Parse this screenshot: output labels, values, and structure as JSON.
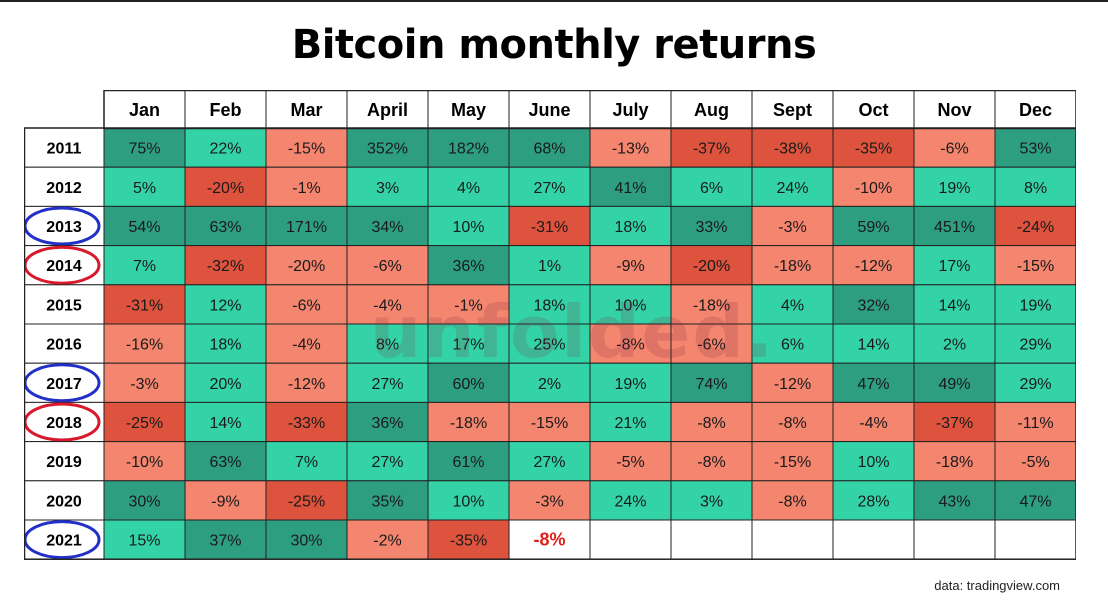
{
  "title": "Bitcoin monthly returns",
  "watermark": "unfolded.",
  "source": "data: tradingview.com",
  "colors": {
    "strong_green": "#2e9e80",
    "light_green": "#34d3a7",
    "light_red": "#f4856f",
    "strong_red": "#dd533d",
    "highlight_text": "#e0201e",
    "blue_circle": "#2330c8",
    "red_circle": "#d8182b"
  },
  "chart_data": {
    "type": "table",
    "title": "Bitcoin monthly returns",
    "columns": [
      "Jan",
      "Feb",
      "Mar",
      "April",
      "May",
      "June",
      "July",
      "Aug",
      "Sept",
      "Oct",
      "Nov",
      "Dec"
    ],
    "rows": [
      {
        "year": "2011",
        "circle": "",
        "values": [
          75,
          22,
          -15,
          352,
          182,
          68,
          -13,
          -37,
          -38,
          -35,
          -6,
          53
        ]
      },
      {
        "year": "2012",
        "circle": "",
        "values": [
          5,
          -20,
          -1,
          3,
          4,
          27,
          41,
          6,
          24,
          -10,
          19,
          8
        ]
      },
      {
        "year": "2013",
        "circle": "blue",
        "values": [
          54,
          63,
          171,
          34,
          10,
          -31,
          18,
          33,
          -3,
          59,
          451,
          -24
        ]
      },
      {
        "year": "2014",
        "circle": "red",
        "values": [
          7,
          -32,
          -20,
          -6,
          36,
          1,
          -9,
          -20,
          -18,
          -12,
          17,
          -15
        ]
      },
      {
        "year": "2015",
        "circle": "",
        "values": [
          -31,
          12,
          -6,
          -4,
          -1,
          18,
          10,
          -18,
          4,
          32,
          14,
          19
        ]
      },
      {
        "year": "2016",
        "circle": "",
        "values": [
          -16,
          18,
          -4,
          8,
          17,
          25,
          -8,
          -6,
          6,
          14,
          2,
          29
        ]
      },
      {
        "year": "2017",
        "circle": "blue",
        "values": [
          -3,
          20,
          -12,
          27,
          60,
          2,
          19,
          74,
          -12,
          47,
          49,
          29
        ]
      },
      {
        "year": "2018",
        "circle": "red",
        "values": [
          -25,
          14,
          -33,
          36,
          -18,
          -15,
          21,
          -8,
          -8,
          -4,
          -37,
          -11
        ]
      },
      {
        "year": "2019",
        "circle": "",
        "values": [
          -10,
          63,
          7,
          27,
          61,
          27,
          -5,
          -8,
          -15,
          10,
          -18,
          -5
        ]
      },
      {
        "year": "2020",
        "circle": "",
        "values": [
          30,
          -9,
          -25,
          35,
          10,
          -3,
          24,
          3,
          -8,
          28,
          43,
          47
        ]
      },
      {
        "year": "2021",
        "circle": "blue",
        "values": [
          15,
          37,
          30,
          -2,
          -35,
          -8,
          null,
          null,
          null,
          null,
          null,
          null
        ]
      }
    ],
    "shades": [
      [
        "strong_green",
        "light_green",
        "light_red",
        "strong_green",
        "strong_green",
        "strong_green",
        "light_red",
        "strong_red",
        "strong_red",
        "strong_red",
        "light_red",
        "strong_green"
      ],
      [
        "light_green",
        "strong_red",
        "light_red",
        "light_green",
        "light_green",
        "light_green",
        "strong_green",
        "light_green",
        "light_green",
        "light_red",
        "light_green",
        "light_green"
      ],
      [
        "strong_green",
        "strong_green",
        "strong_green",
        "strong_green",
        "light_green",
        "strong_red",
        "light_green",
        "strong_green",
        "light_red",
        "strong_green",
        "strong_green",
        "strong_red"
      ],
      [
        "light_green",
        "strong_red",
        "light_red",
        "light_red",
        "strong_green",
        "light_green",
        "light_red",
        "strong_red",
        "light_red",
        "light_red",
        "light_green",
        "light_red"
      ],
      [
        "strong_red",
        "light_green",
        "light_red",
        "light_red",
        "light_red",
        "light_green",
        "light_green",
        "light_red",
        "light_green",
        "strong_green",
        "light_green",
        "light_green"
      ],
      [
        "light_red",
        "light_green",
        "light_red",
        "light_green",
        "light_green",
        "light_green",
        "light_red",
        "light_red",
        "light_green",
        "light_green",
        "light_green",
        "light_green"
      ],
      [
        "light_red",
        "light_green",
        "light_red",
        "light_green",
        "strong_green",
        "light_green",
        "light_green",
        "strong_green",
        "light_red",
        "strong_green",
        "strong_green",
        "light_green"
      ],
      [
        "strong_red",
        "light_green",
        "strong_red",
        "strong_green",
        "light_red",
        "light_red",
        "light_green",
        "light_red",
        "light_red",
        "light_red",
        "strong_red",
        "light_red"
      ],
      [
        "light_red",
        "strong_green",
        "light_green",
        "light_green",
        "strong_green",
        "light_green",
        "light_red",
        "light_red",
        "light_red",
        "light_green",
        "light_red",
        "light_red"
      ],
      [
        "strong_green",
        "light_red",
        "strong_red",
        "strong_green",
        "light_green",
        "light_red",
        "light_green",
        "light_green",
        "light_red",
        "light_green",
        "strong_green",
        "strong_green"
      ],
      [
        "light_green",
        "strong_green",
        "strong_green",
        "light_red",
        "strong_red",
        "none",
        "none",
        "none",
        "none",
        "none",
        "none",
        "none"
      ]
    ]
  }
}
